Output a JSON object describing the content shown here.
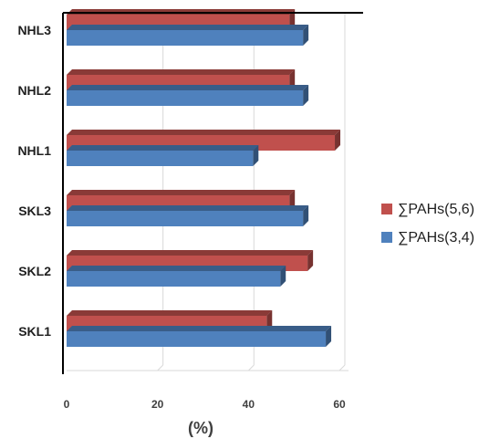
{
  "chart_data": {
    "type": "bar",
    "orientation": "horizontal",
    "categories": [
      "SKL1",
      "SKL2",
      "SKL3",
      "NHL1",
      "NHL2",
      "NHL3"
    ],
    "series": [
      {
        "name": "∑PAHs(5,6)",
        "color": "#c0504d",
        "values": [
          44,
          53,
          49,
          59,
          49,
          49
        ]
      },
      {
        "name": "∑PAHs(3,4)",
        "color": "#4f81bd",
        "values": [
          57,
          47,
          52,
          41,
          52,
          52
        ]
      }
    ],
    "xlabel": "(%)",
    "xlim": [
      0,
      60
    ],
    "xticks": [
      0,
      20,
      40,
      60
    ],
    "grid": true,
    "style": "3d",
    "legend_position": "right"
  }
}
